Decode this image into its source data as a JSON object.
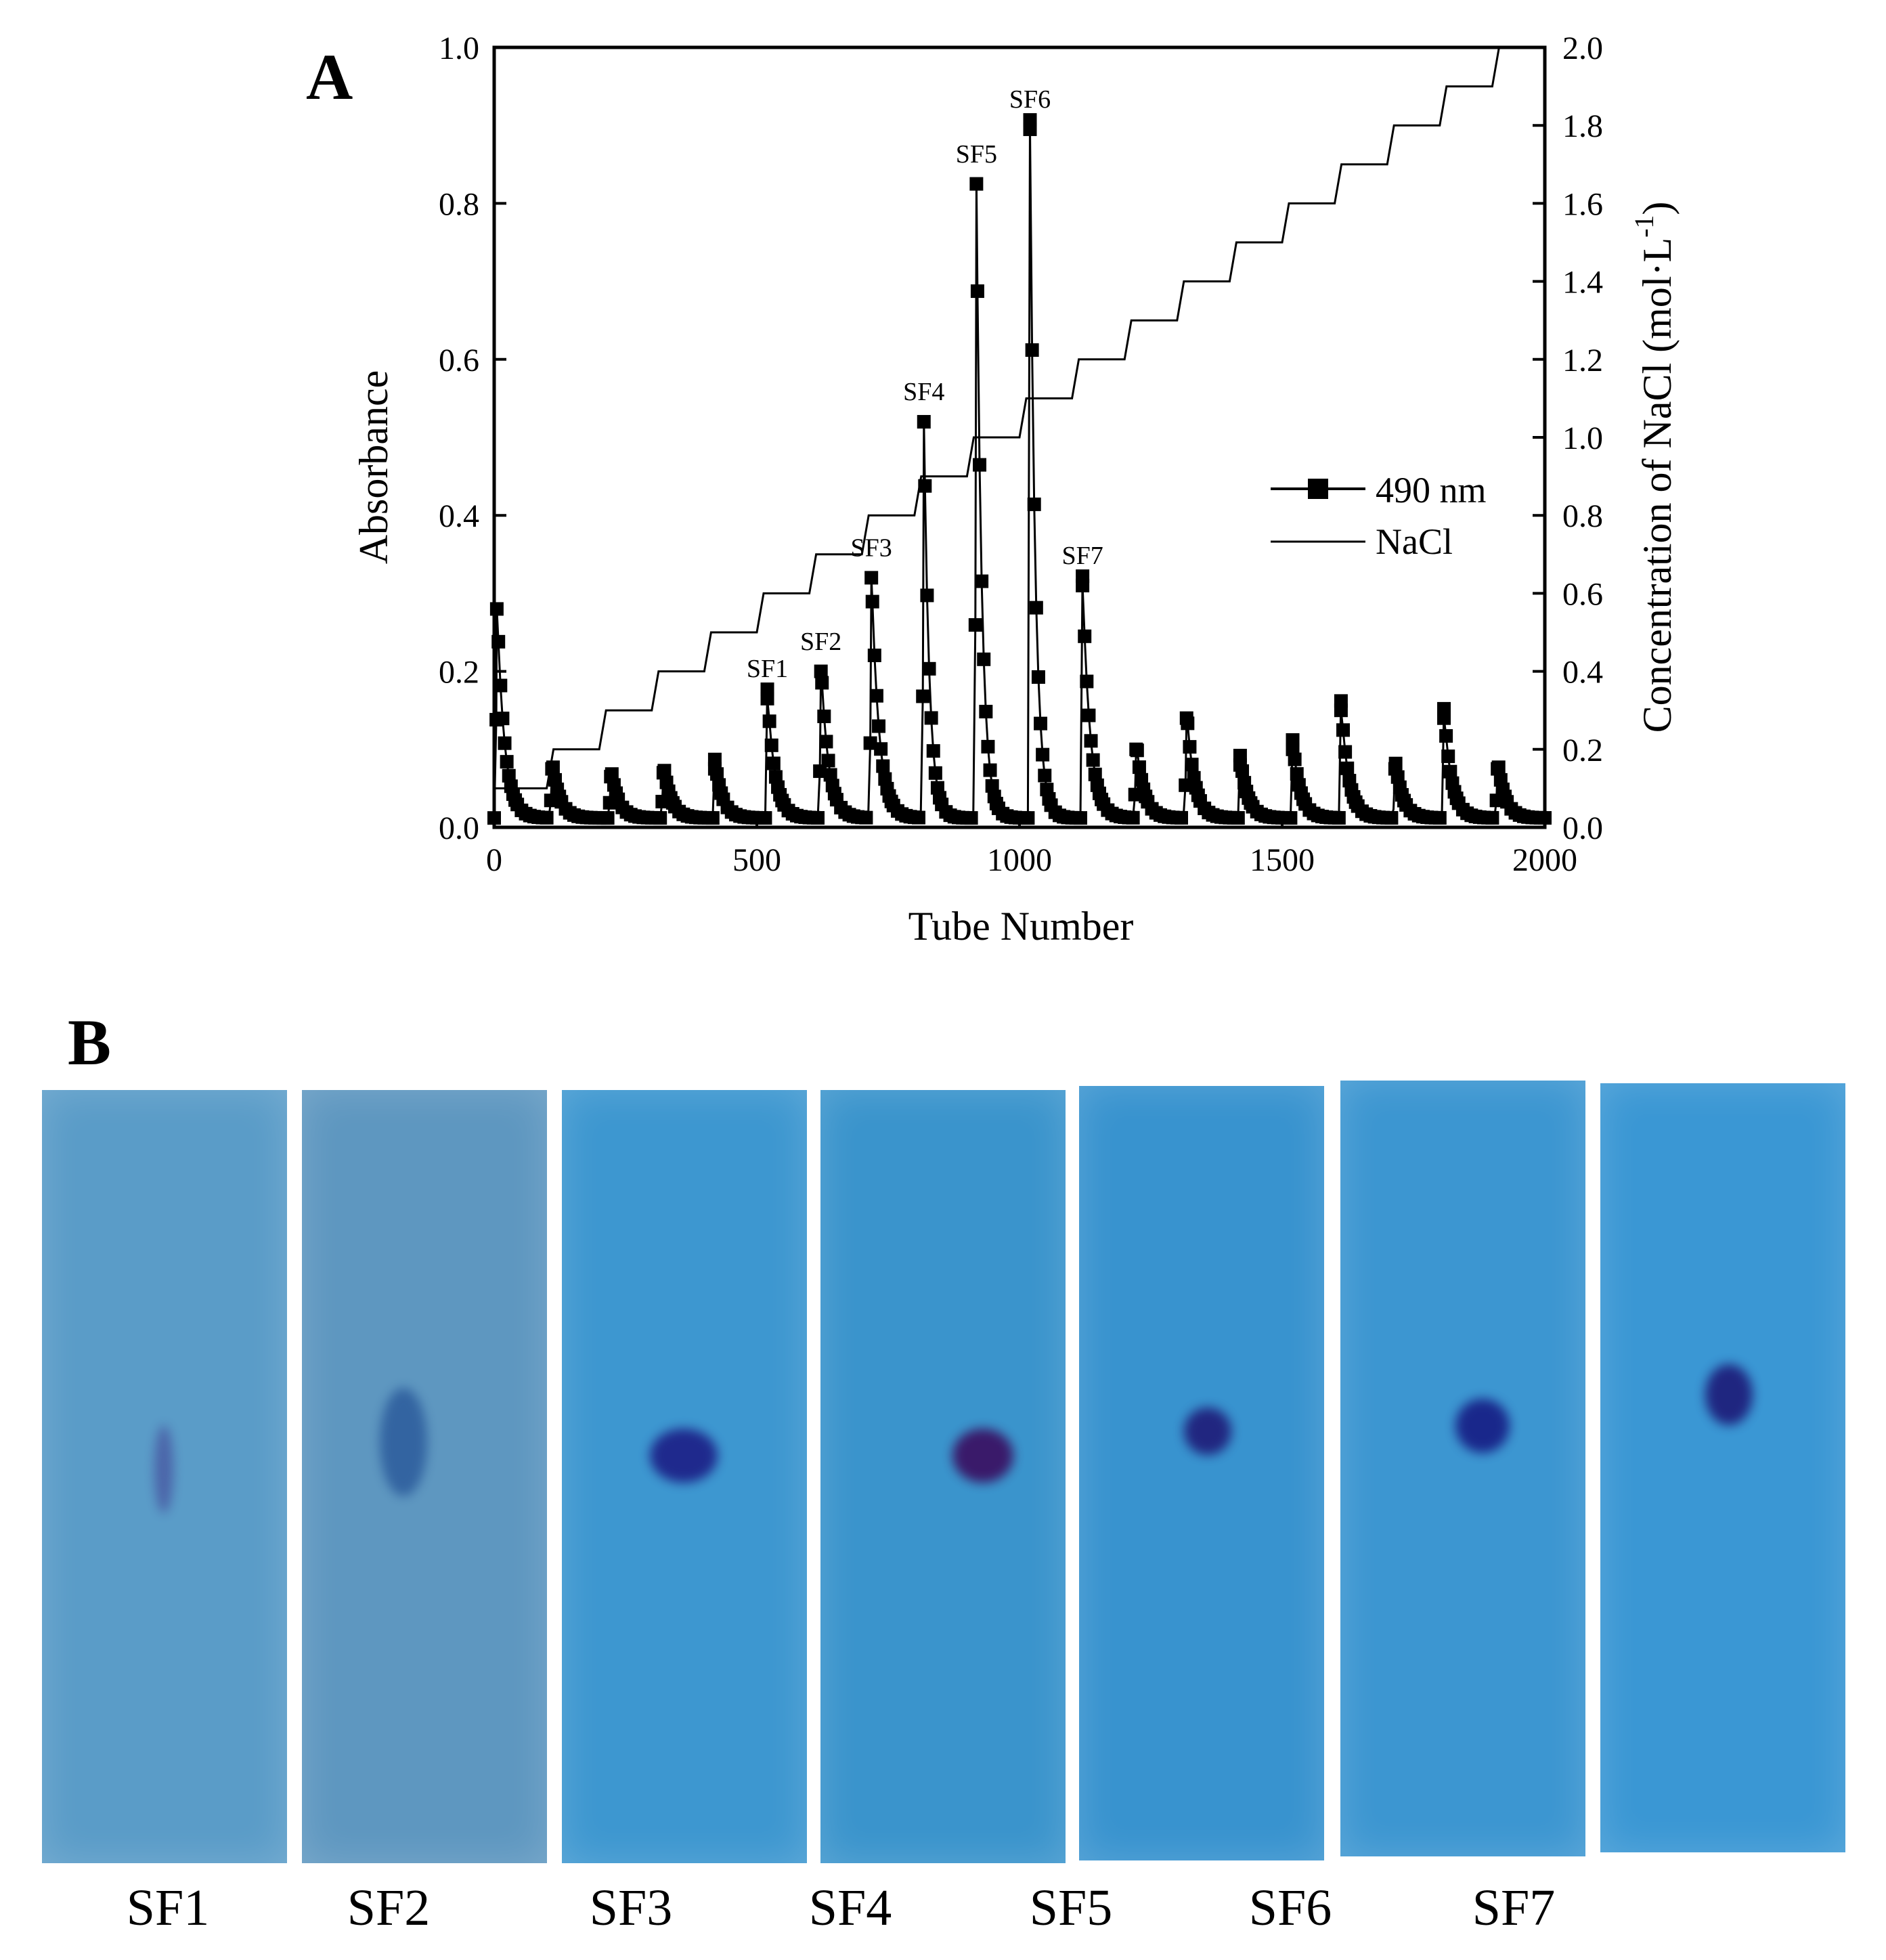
{
  "figure": {
    "panel_a_label": "A",
    "panel_b_label": "B"
  },
  "chart_data": {
    "type": "line",
    "xlabel": "Tube Number",
    "ylabel": "Absorbance",
    "y2label_main": "Concentration of NaCl (mol·L",
    "y2label_sup": "-1",
    "y2label_end": ")",
    "xlim": [
      0,
      2000
    ],
    "ylim": [
      0,
      1.0
    ],
    "y2lim": [
      0,
      2.0
    ],
    "xticks": [
      "0",
      "500",
      "1000",
      "1500",
      "2000"
    ],
    "yticks": [
      "0.0",
      "0.2",
      "0.4",
      "0.6",
      "0.8",
      "1.0"
    ],
    "y2ticks": [
      "0.0",
      "0.2",
      "0.4",
      "0.6",
      "0.8",
      "1.0",
      "1.2",
      "1.4",
      "1.6",
      "1.8",
      "2.0"
    ],
    "legend": {
      "position": "right",
      "entries": [
        "490 nm",
        "NaCl"
      ]
    },
    "peak_labels": [
      {
        "text": "SF1",
        "x": 520,
        "y": 0.17
      },
      {
        "text": "SF2",
        "x": 622,
        "y": 0.205
      },
      {
        "text": "SF3",
        "x": 718,
        "y": 0.325
      },
      {
        "text": "SF4",
        "x": 818,
        "y": 0.525
      },
      {
        "text": "SF5",
        "x": 918,
        "y": 0.83
      },
      {
        "text": "SF6",
        "x": 1020,
        "y": 0.9
      },
      {
        "text": "SF7",
        "x": 1120,
        "y": 0.315
      }
    ],
    "peaks": [
      {
        "x": 5,
        "h": 0.28
      },
      {
        "x": 110,
        "h": 0.075
      },
      {
        "x": 222,
        "h": 0.065
      },
      {
        "x": 322,
        "h": 0.07
      },
      {
        "x": 420,
        "h": 0.075
      },
      {
        "x": 520,
        "h": 0.165
      },
      {
        "x": 622,
        "h": 0.2
      },
      {
        "x": 718,
        "h": 0.32
      },
      {
        "x": 818,
        "h": 0.52
      },
      {
        "x": 918,
        "h": 0.825
      },
      {
        "x": 1020,
        "h": 0.895
      },
      {
        "x": 1120,
        "h": 0.31
      },
      {
        "x": 1222,
        "h": 0.1
      },
      {
        "x": 1318,
        "h": 0.14
      },
      {
        "x": 1420,
        "h": 0.08
      },
      {
        "x": 1520,
        "h": 0.1
      },
      {
        "x": 1612,
        "h": 0.15
      },
      {
        "x": 1715,
        "h": 0.075
      },
      {
        "x": 1808,
        "h": 0.14
      },
      {
        "x": 1910,
        "h": 0.075
      }
    ],
    "nacl_steps": [
      {
        "x_start": 0,
        "x_end": 100,
        "y": 0.1
      },
      {
        "x_start": 100,
        "x_end": 200,
        "y": 0.2
      },
      {
        "x_start": 200,
        "x_end": 300,
        "y": 0.3
      },
      {
        "x_start": 300,
        "x_end": 400,
        "y": 0.4
      },
      {
        "x_start": 400,
        "x_end": 500,
        "y": 0.5
      },
      {
        "x_start": 500,
        "x_end": 600,
        "y": 0.6
      },
      {
        "x_start": 600,
        "x_end": 700,
        "y": 0.7
      },
      {
        "x_start": 700,
        "x_end": 800,
        "y": 0.8
      },
      {
        "x_start": 800,
        "x_end": 900,
        "y": 0.9
      },
      {
        "x_start": 900,
        "x_end": 1000,
        "y": 1.0
      },
      {
        "x_start": 1000,
        "x_end": 1100,
        "y": 1.1
      },
      {
        "x_start": 1100,
        "x_end": 1200,
        "y": 1.2
      },
      {
        "x_start": 1200,
        "x_end": 1300,
        "y": 1.3
      },
      {
        "x_start": 1300,
        "x_end": 1400,
        "y": 1.4
      },
      {
        "x_start": 1400,
        "x_end": 1500,
        "y": 1.5
      },
      {
        "x_start": 1500,
        "x_end": 1600,
        "y": 1.6
      },
      {
        "x_start": 1600,
        "x_end": 1700,
        "y": 1.7
      },
      {
        "x_start": 1700,
        "x_end": 1800,
        "y": 1.8
      },
      {
        "x_start": 1800,
        "x_end": 1900,
        "y": 1.9
      },
      {
        "x_start": 1900,
        "x_end": 1920,
        "y": 2.0
      }
    ]
  },
  "panel_b": {
    "strips": [
      {
        "label": "SF1",
        "bg": "#5a9cc8",
        "spot": "#4a5fa6"
      },
      {
        "label": "SF2",
        "bg": "#5e97c0",
        "spot": "#2f5f9e"
      },
      {
        "label": "SF3",
        "bg": "#3d97d0",
        "spot": "#1c1e86"
      },
      {
        "label": "SF4",
        "bg": "#3a94cc",
        "spot": "#3a0d60"
      },
      {
        "label": "SF5",
        "bg": "#3893cf",
        "spot": "#1f1b78"
      },
      {
        "label": "SF6",
        "bg": "#3c96d1",
        "spot": "#161c84"
      },
      {
        "label": "SF7",
        "bg": "#3a97d4",
        "spot": "#1d1a78"
      }
    ]
  }
}
